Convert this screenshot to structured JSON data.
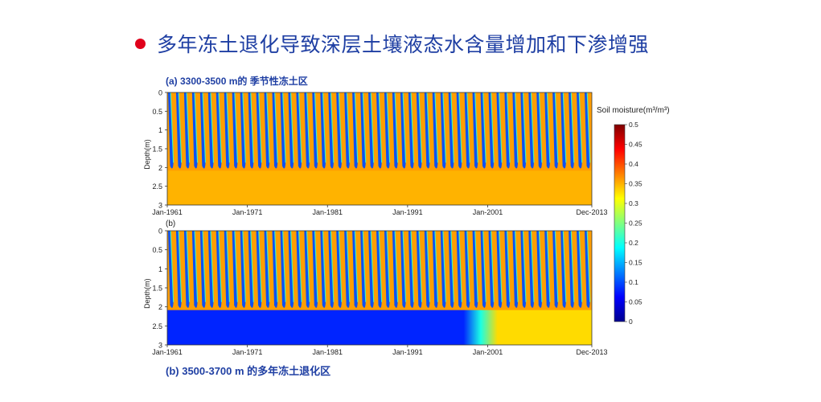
{
  "headline": {
    "text": "多年冻土退化导致深层土壤液态水含量增加和下渗增强",
    "bullet_color": "#e0001b",
    "text_color": "#1f3fa3"
  },
  "chart_data": [
    {
      "type": "heatmap",
      "id": "panel-a",
      "title": "(a) 3300-3500 m的 季节性冻土区",
      "ylabel": "Depth(m)",
      "ylim": [
        0,
        3
      ],
      "yticks": [
        "0",
        "0.5",
        "1",
        "1.5",
        "2",
        "2.5",
        "3"
      ],
      "xticks": [
        "Jan-1961",
        "Jan-1971",
        "Jan-1981",
        "Jan-1991",
        "Jan-2001",
        "Dec-2013"
      ],
      "x_range": [
        "Jan-1961",
        "Dec-2013"
      ],
      "seasonal_cycles": 53,
      "summer_moisture": 0.36,
      "winter_moisture": 0.1,
      "frost_depth_m": 2.0,
      "deep_moisture_below_frost": 0.35,
      "deep_moisture_after_2000": 0.35
    },
    {
      "type": "heatmap",
      "id": "panel-b",
      "panel_label": "(b)",
      "caption": "(b) 3500-3700 m 的多年冻土退化区",
      "ylabel": "Depth(m)",
      "ylim": [
        0,
        3
      ],
      "yticks": [
        "0",
        "0.5",
        "1",
        "1.5",
        "2",
        "2.5",
        "3"
      ],
      "xticks": [
        "Jan-1961",
        "Jan-1971",
        "Jan-1981",
        "Jan-1991",
        "Jan-2001",
        "Dec-2013"
      ],
      "x_range": [
        "Jan-1961",
        "Dec-2013"
      ],
      "seasonal_cycles": 53,
      "summer_moisture": 0.36,
      "winter_moisture": 0.1,
      "frost_depth_m": 2.0,
      "deep_moisture_below_frost": 0.08,
      "degradation_start": "Jan-1998",
      "deep_moisture_after_2000": 0.33
    }
  ],
  "colorbar": {
    "title": "Soil moisture(m³/m³)",
    "ticks": [
      "0",
      "0.05",
      "0.1",
      "0.15",
      "0.2",
      "0.25",
      "0.3",
      "0.35",
      "0.4",
      "0.45",
      "0.5"
    ],
    "range": [
      0,
      0.5
    ],
    "colormap": "jet"
  }
}
